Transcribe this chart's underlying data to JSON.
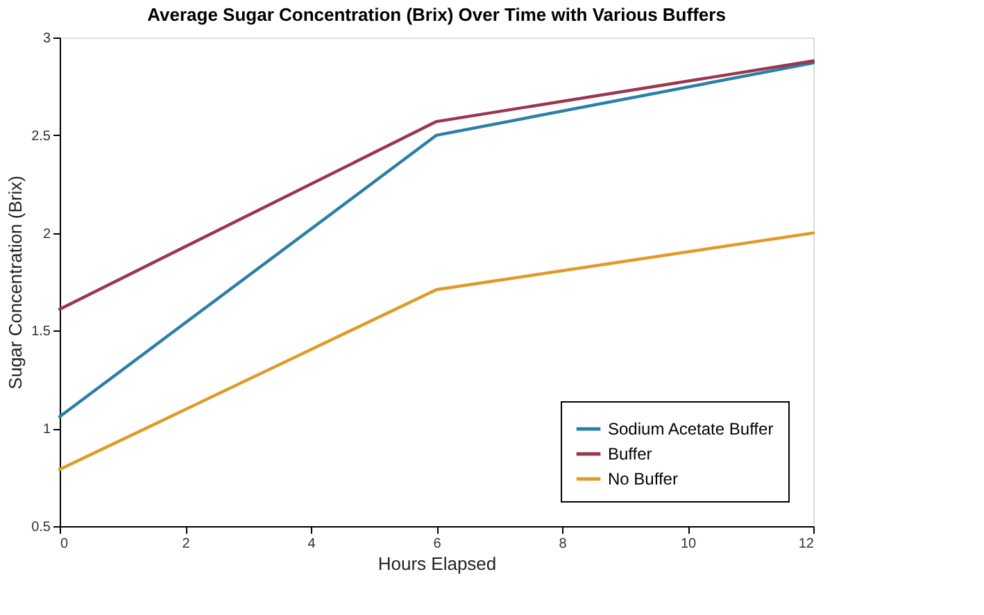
{
  "chart_data": {
    "type": "line",
    "title": "Average Sugar Concentration (Brix) Over Time with Various Buffers",
    "xlabel": "Hours Elapsed",
    "ylabel": "Sugar Concentration (Brix)",
    "x": [
      0,
      6,
      12
    ],
    "series": [
      {
        "name": "Sodium Acetate Buffer",
        "color": "#2a7fa8",
        "values": [
          1.06,
          2.5,
          2.87
        ]
      },
      {
        "name": "Buffer",
        "color": "#9b3550",
        "values": [
          1.61,
          2.57,
          2.88
        ]
      },
      {
        "name": "No Buffer",
        "color": "#e09a25",
        "values": [
          0.79,
          1.71,
          2.0
        ]
      }
    ],
    "xlim": [
      0,
      12
    ],
    "xticks": [
      0,
      2,
      4,
      6,
      8,
      10,
      12
    ],
    "ylim": [
      0.5,
      3
    ],
    "yticks": [
      0.5,
      1,
      1.5,
      2,
      2.5,
      3
    ],
    "grid": false,
    "legend": "bottom right",
    "marker": "none",
    "line_style": "solid"
  }
}
